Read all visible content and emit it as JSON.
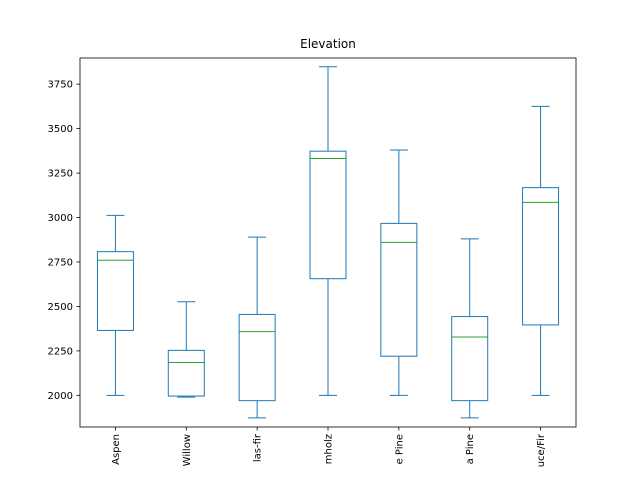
{
  "chart_data": {
    "type": "boxplot",
    "title": "Elevation",
    "xlabel": "",
    "ylabel": "",
    "ylim": [
      1822,
      3897
    ],
    "yticks": [
      2000,
      2250,
      2500,
      2750,
      3000,
      3250,
      3500,
      3750
    ],
    "ytick_labels": [
      "2000",
      "2250",
      "2500",
      "2750",
      "3000",
      "3250",
      "3500",
      "3750"
    ],
    "categories": [
      "Aspen",
      "Willow",
      "las-fir",
      "mholz",
      "e Pine",
      "a Pine",
      "uce/Fir"
    ],
    "boxes": [
      {
        "whisker_low": 2000,
        "q1": 2365,
        "median": 2760,
        "q3": 2808,
        "whisker_high": 3012
      },
      {
        "whisker_low": 1990,
        "q1": 1996,
        "median": 2185,
        "q3": 2253,
        "whisker_high": 2526
      },
      {
        "whisker_low": 1873,
        "q1": 1970,
        "median": 2358,
        "q3": 2455,
        "whisker_high": 2890
      },
      {
        "whisker_low": 2000,
        "q1": 2656,
        "median": 3332,
        "q3": 3373,
        "whisker_high": 3848
      },
      {
        "whisker_low": 2000,
        "q1": 2220,
        "median": 2860,
        "q3": 2967,
        "whisker_high": 3380
      },
      {
        "whisker_low": 1873,
        "q1": 1970,
        "median": 2328,
        "q3": 2443,
        "whisker_high": 2880
      },
      {
        "whisker_low": 2000,
        "q1": 2396,
        "median": 3085,
        "q3": 3168,
        "whisker_high": 3625
      }
    ],
    "grid": false,
    "legend": "none",
    "colors": {
      "box": "#1f77b4",
      "median": "#2ca02c",
      "axis": "#000000"
    }
  }
}
